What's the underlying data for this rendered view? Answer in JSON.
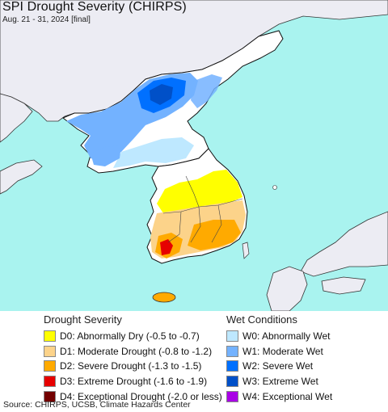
{
  "header": {
    "title": "SPI Drought Severity (CHIRPS)",
    "subtitle": "Aug. 21 - 31, 2024 [final]"
  },
  "map": {
    "sea_color": "#a9f3ef",
    "land_color": "#ececf3",
    "border_color": "#111111",
    "regions": [
      {
        "name": "north-korea-wet-region",
        "category": "W1"
      },
      {
        "name": "north-korea-severe-wet-core",
        "category": "W2"
      },
      {
        "name": "north-korea-extreme-wet-core",
        "category": "W3"
      },
      {
        "name": "south-korea-dry-region",
        "category": "D0"
      },
      {
        "name": "south-korea-moderate-drought",
        "category": "D1"
      },
      {
        "name": "south-korea-severe-drought",
        "category": "D2"
      },
      {
        "name": "south-korea-extreme-drought",
        "category": "D3"
      },
      {
        "name": "jeju-island",
        "category": "D2"
      }
    ]
  },
  "legend": {
    "drought": {
      "heading": "Drought Severity",
      "items": [
        {
          "label": "D0: Abnormally Dry (-0.5 to -0.7)",
          "color": "#ffff00"
        },
        {
          "label": "D1: Moderate Drought (-0.8 to -1.2)",
          "color": "#fcd38a"
        },
        {
          "label": "D2: Severe Drought (-1.3 to -1.5)",
          "color": "#ffaa00"
        },
        {
          "label": "D3: Extreme Drought (-1.6 to -1.9)",
          "color": "#e60000"
        },
        {
          "label": "D4: Exceptional Drought (-2.0 or less)",
          "color": "#730000"
        }
      ]
    },
    "wet": {
      "heading": "Wet Conditions",
      "items": [
        {
          "label": "W0: Abnormally Wet",
          "color": "#bee8ff"
        },
        {
          "label": "W1: Moderate Wet",
          "color": "#73b2ff"
        },
        {
          "label": "W2: Severe Wet",
          "color": "#0070ff"
        },
        {
          "label": "W3: Extreme Wet",
          "color": "#0050c8"
        },
        {
          "label": "W4: Exceptional Wet",
          "color": "#a900e6"
        }
      ]
    }
  },
  "footer": {
    "source": "Source: CHIRPS, UCSB, Climate Hazards Center"
  }
}
